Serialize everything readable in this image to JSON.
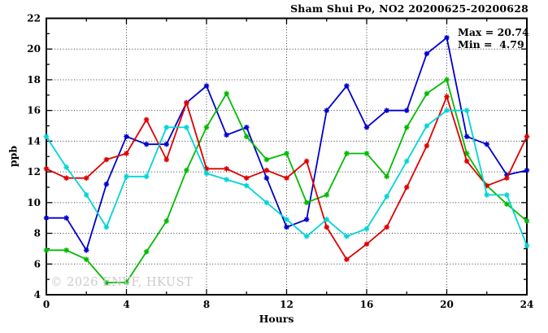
{
  "title": "Sham Shui Po, NO2 20200625-20200628",
  "annotation": {
    "max_label": "Max = 20.74",
    "min_label": "Min =  4.79"
  },
  "watermark": "© 2026 ENVF, HKUST",
  "chart_data": {
    "type": "line",
    "title": "Sham Shui Po, NO2 20200625-20200628",
    "xlabel": "Hours",
    "ylabel": "ppb",
    "xlim": [
      0,
      24
    ],
    "ylim": [
      4,
      22
    ],
    "x_major_ticks": [
      0,
      4,
      8,
      12,
      16,
      20,
      24
    ],
    "x_minor_step": 2,
    "y_major_ticks": [
      4,
      6,
      8,
      10,
      12,
      14,
      16,
      18,
      20,
      22
    ],
    "y_minor_step": 1,
    "grid": {
      "x_lines": [
        4,
        8,
        12,
        16,
        20
      ],
      "y_lines": [
        6,
        8,
        10,
        12,
        14,
        16,
        18,
        20
      ],
      "style": "dotted"
    },
    "legend": "none",
    "x": [
      0,
      1,
      2,
      3,
      4,
      5,
      6,
      7,
      8,
      9,
      10,
      11,
      12,
      13,
      14,
      15,
      16,
      17,
      18,
      19,
      20,
      21,
      22,
      23,
      24
    ],
    "series": [
      {
        "name": "series-blue",
        "color": "#0000cc",
        "values": [
          9.0,
          9.0,
          6.9,
          11.2,
          14.3,
          13.8,
          13.8,
          16.5,
          17.6,
          14.4,
          14.9,
          11.6,
          8.4,
          8.9,
          16.0,
          17.6,
          14.9,
          16.0,
          16.0,
          19.7,
          20.74,
          14.3,
          13.8,
          11.8,
          12.1
        ]
      },
      {
        "name": "series-green",
        "color": "#00bb00",
        "values": [
          6.9,
          6.9,
          6.3,
          4.79,
          4.8,
          6.8,
          8.8,
          12.1,
          14.9,
          17.1,
          14.3,
          12.8,
          13.2,
          10.0,
          10.5,
          13.2,
          13.2,
          11.7,
          14.9,
          17.1,
          18.0,
          13.2,
          11.1,
          9.9,
          8.8
        ]
      },
      {
        "name": "series-red",
        "color": "#dd0000",
        "values": [
          12.2,
          11.6,
          11.6,
          12.8,
          13.2,
          15.4,
          12.8,
          16.5,
          12.2,
          12.2,
          11.6,
          12.1,
          11.6,
          12.7,
          8.4,
          6.3,
          7.3,
          8.4,
          11.0,
          13.7,
          16.9,
          12.7,
          11.1,
          11.6,
          14.3
        ]
      },
      {
        "name": "series-cyan",
        "color": "#00d5d5",
        "values": [
          14.3,
          12.3,
          10.5,
          8.4,
          11.7,
          11.7,
          14.9,
          14.9,
          11.9,
          11.5,
          11.1,
          10.0,
          8.9,
          7.8,
          8.9,
          7.8,
          8.3,
          10.4,
          12.7,
          15.0,
          16.0,
          16.0,
          10.5,
          10.5,
          7.2
        ]
      }
    ],
    "stats": {
      "max": 20.74,
      "min": 4.79
    }
  }
}
